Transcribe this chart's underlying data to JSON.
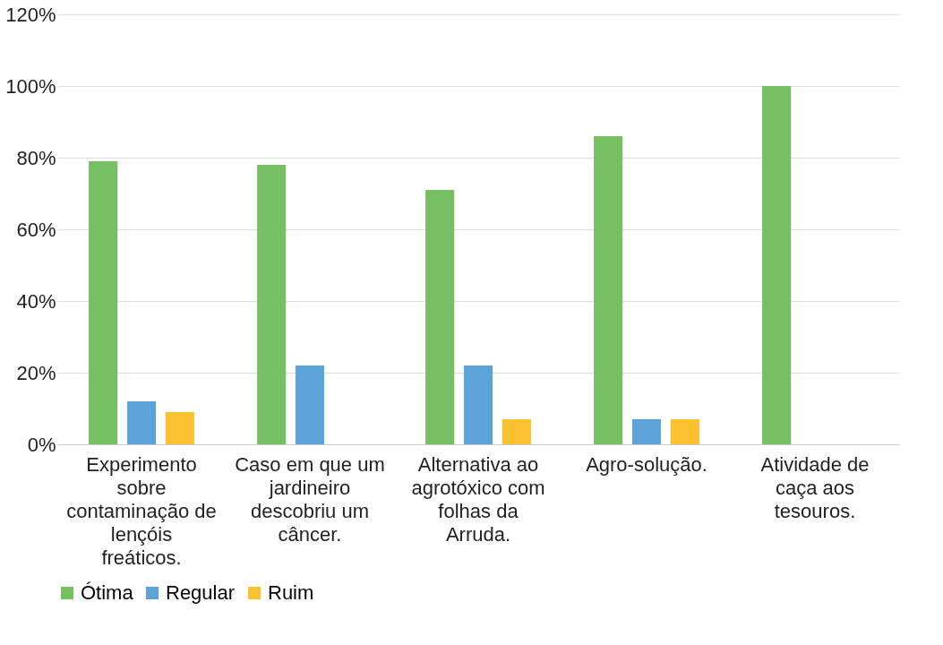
{
  "chart_data": {
    "type": "bar",
    "categories": [
      "Experimento sobre contaminação de lençóis freáticos.",
      "Caso em que um jardineiro descobriu um câncer.",
      "Alternativa ao agrotóxico com folhas da Arruda.",
      "Agro-solução.",
      "Atividade de caça aos tesouros."
    ],
    "series": [
      {
        "name": "Ótima",
        "color": "#77bf63",
        "values": [
          79,
          78,
          71,
          86,
          100
        ]
      },
      {
        "name": "Regular",
        "color": "#5ba3d9",
        "values": [
          12,
          22,
          22,
          7,
          0
        ]
      },
      {
        "name": "Ruim",
        "color": "#fcc12e",
        "values": [
          9,
          0,
          7,
          7,
          0
        ]
      }
    ],
    "ylim": [
      0,
      120
    ],
    "yticks": [
      {
        "value": 0,
        "label": "0%"
      },
      {
        "value": 20,
        "label": "20%"
      },
      {
        "value": 40,
        "label": "40%"
      },
      {
        "value": 60,
        "label": "60%"
      },
      {
        "value": 80,
        "label": "80%"
      },
      {
        "value": 100,
        "label": "100%"
      },
      {
        "value": 120,
        "label": "120%"
      }
    ],
    "grid": "y",
    "legend": "bottom"
  }
}
